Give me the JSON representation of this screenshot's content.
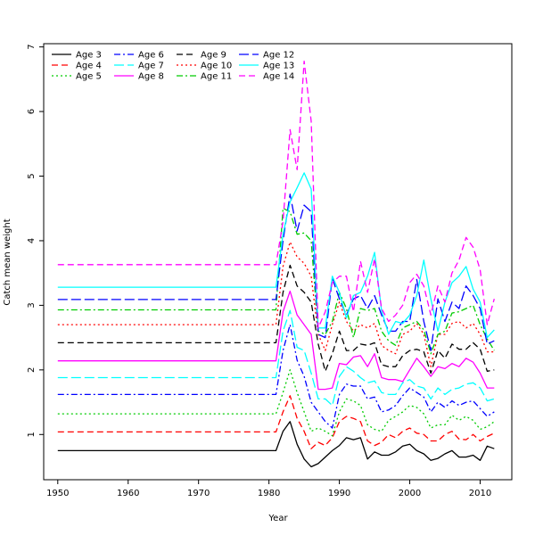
{
  "chart_data": {
    "type": "line",
    "xlabel": "Year",
    "ylabel": "Catch mean weight",
    "xlim": [
      1948,
      2014.5
    ],
    "ylim": [
      0.3,
      7.05
    ],
    "xticks": [
      1950,
      1960,
      1970,
      1980,
      1990,
      2000,
      2010
    ],
    "yticks": [
      1,
      2,
      3,
      4,
      5,
      6,
      7
    ],
    "x": [
      1950,
      1951,
      1952,
      1953,
      1954,
      1955,
      1956,
      1957,
      1958,
      1959,
      1960,
      1961,
      1962,
      1963,
      1964,
      1965,
      1966,
      1967,
      1968,
      1969,
      1970,
      1971,
      1972,
      1973,
      1974,
      1975,
      1976,
      1977,
      1978,
      1979,
      1980,
      1981,
      1982,
      1983,
      1984,
      1985,
      1986,
      1987,
      1988,
      1989,
      1990,
      1991,
      1992,
      1993,
      1994,
      1995,
      1996,
      1997,
      1998,
      1999,
      2000,
      2001,
      2002,
      2003,
      2004,
      2005,
      2006,
      2007,
      2008,
      2009,
      2010,
      2011,
      2012
    ],
    "legend": {
      "placement": "top-left",
      "columns": 4
    },
    "series": [
      {
        "name": "Age 3",
        "color": "#000000",
        "dash": "solid",
        "pre": 0.75,
        "tail": [
          0.75,
          1.05,
          1.2,
          0.85,
          0.62,
          0.5,
          0.55,
          0.65,
          0.75,
          0.83,
          0.95,
          0.92,
          0.95,
          0.62,
          0.73,
          0.68,
          0.68,
          0.73,
          0.82,
          0.85,
          0.75,
          0.7,
          0.6,
          0.63,
          0.7,
          0.75,
          0.65,
          0.65,
          0.68,
          0.6,
          0.82,
          0.78
        ]
      },
      {
        "name": "Age 4",
        "color": "#ff0000",
        "dash": "dashed",
        "pre": 1.04,
        "tail": [
          1.04,
          1.35,
          1.6,
          1.25,
          1.05,
          0.78,
          0.88,
          0.83,
          0.95,
          1.2,
          1.28,
          1.25,
          1.2,
          0.9,
          0.83,
          0.88,
          1.0,
          0.95,
          1.05,
          1.1,
          1.02,
          1.0,
          0.9,
          0.9,
          1.0,
          1.05,
          0.93,
          0.92,
          1.0,
          0.9,
          0.97,
          1.02
        ]
      },
      {
        "name": "Age 5",
        "color": "#00cc00",
        "dash": "dotted",
        "pre": 1.32,
        "tail": [
          1.32,
          1.65,
          2.0,
          1.65,
          1.35,
          1.05,
          1.1,
          1.05,
          0.98,
          1.35,
          1.55,
          1.52,
          1.45,
          1.15,
          1.08,
          1.05,
          1.22,
          1.28,
          1.35,
          1.45,
          1.42,
          1.32,
          1.1,
          1.15,
          1.15,
          1.3,
          1.22,
          1.28,
          1.22,
          1.08,
          1.12,
          1.2
        ]
      },
      {
        "name": "Age 6",
        "color": "#0000ff",
        "dash": "dashdot",
        "pre": 1.62,
        "tail": [
          1.62,
          2.3,
          2.7,
          2.15,
          1.9,
          1.5,
          1.35,
          1.2,
          1.1,
          1.62,
          1.78,
          1.75,
          1.75,
          1.55,
          1.58,
          1.35,
          1.38,
          1.45,
          1.6,
          1.72,
          1.65,
          1.58,
          1.35,
          1.5,
          1.42,
          1.52,
          1.45,
          1.5,
          1.52,
          1.4,
          1.28,
          1.35
        ]
      },
      {
        "name": "Age 7",
        "color": "#00ffff",
        "dash": "longdash",
        "pre": 1.88,
        "tail": [
          1.88,
          2.6,
          2.92,
          2.35,
          2.3,
          1.95,
          1.55,
          1.55,
          1.45,
          1.9,
          2.05,
          1.98,
          1.88,
          1.8,
          1.83,
          1.65,
          1.62,
          1.62,
          1.8,
          1.85,
          1.75,
          1.72,
          1.55,
          1.72,
          1.62,
          1.7,
          1.72,
          1.78,
          1.8,
          1.72,
          1.52,
          1.55
        ]
      },
      {
        "name": "Age 8",
        "color": "#ff00ff",
        "dash": "solid",
        "pre": 2.14,
        "tail": [
          2.14,
          2.9,
          3.22,
          2.85,
          2.7,
          2.55,
          1.7,
          1.7,
          1.72,
          2.1,
          2.08,
          2.2,
          2.22,
          2.05,
          2.25,
          1.88,
          1.85,
          1.85,
          1.82,
          2.0,
          2.18,
          2.05,
          1.9,
          2.05,
          2.02,
          2.1,
          2.05,
          2.18,
          2.12,
          1.95,
          1.72,
          1.72
        ]
      },
      {
        "name": "Age 9",
        "color": "#000000",
        "dash": "dashed",
        "pre": 2.42,
        "tail": [
          2.42,
          3.2,
          3.62,
          3.3,
          3.2,
          3.05,
          2.4,
          1.98,
          2.25,
          2.6,
          2.3,
          2.3,
          2.4,
          2.38,
          2.42,
          2.08,
          2.05,
          2.05,
          2.22,
          2.3,
          2.32,
          2.28,
          1.95,
          2.3,
          2.18,
          2.4,
          2.32,
          2.32,
          2.42,
          2.32,
          1.98,
          2.0
        ]
      },
      {
        "name": "Age 10",
        "color": "#ff0000",
        "dash": "dotted",
        "pre": 2.7,
        "tail": [
          2.7,
          3.6,
          3.98,
          3.75,
          3.65,
          3.45,
          2.55,
          2.3,
          2.7,
          3.05,
          2.75,
          2.6,
          2.7,
          2.65,
          2.72,
          2.38,
          2.3,
          2.25,
          2.55,
          2.6,
          2.72,
          2.55,
          2.05,
          2.55,
          2.55,
          2.72,
          2.75,
          2.65,
          2.72,
          2.55,
          2.28,
          2.28
        ]
      },
      {
        "name": "Age 11",
        "color": "#00cc00",
        "dash": "dashdot",
        "pre": 2.93,
        "tail": [
          2.93,
          4.5,
          4.45,
          4.1,
          4.12,
          4.0,
          2.6,
          2.55,
          2.75,
          3.2,
          2.95,
          2.5,
          2.95,
          2.92,
          2.95,
          2.6,
          2.45,
          2.38,
          2.65,
          2.7,
          2.75,
          2.62,
          2.25,
          2.55,
          2.6,
          2.88,
          2.9,
          2.95,
          3.0,
          2.7,
          2.48,
          2.3
        ]
      },
      {
        "name": "Age 12",
        "color": "#0000ff",
        "dash": "longdash",
        "pre": 3.09,
        "tail": [
          3.09,
          4.0,
          4.72,
          4.15,
          4.55,
          4.45,
          2.55,
          2.5,
          3.42,
          3.1,
          2.85,
          3.1,
          3.15,
          2.95,
          3.15,
          2.85,
          2.6,
          2.6,
          2.75,
          2.75,
          3.4,
          2.75,
          2.3,
          3.1,
          2.75,
          3.05,
          2.95,
          3.3,
          3.15,
          2.95,
          2.4,
          2.45
        ]
      },
      {
        "name": "Age 13",
        "color": "#00ffff",
        "dash": "solid",
        "pre": 3.28,
        "tail": [
          3.28,
          4.1,
          4.6,
          4.82,
          5.05,
          4.8,
          2.65,
          2.65,
          3.45,
          3.2,
          2.8,
          3.15,
          3.2,
          3.45,
          3.82,
          2.92,
          2.55,
          2.75,
          2.72,
          2.85,
          3.15,
          3.7,
          3.1,
          2.6,
          3.05,
          3.35,
          3.45,
          3.6,
          3.25,
          3.05,
          2.5,
          2.62
        ]
      },
      {
        "name": "Age 14",
        "color": "#ff00ff",
        "dash": "dashed",
        "pre": 3.63,
        "tail": [
          3.63,
          4.3,
          5.72,
          5.1,
          6.78,
          5.85,
          2.65,
          2.9,
          3.35,
          3.45,
          3.45,
          2.9,
          3.68,
          3.2,
          3.72,
          2.95,
          2.75,
          2.85,
          3.0,
          3.35,
          3.48,
          3.3,
          2.85,
          3.3,
          3.05,
          3.5,
          3.7,
          4.05,
          3.9,
          3.55,
          2.7,
          3.1
        ]
      }
    ]
  }
}
